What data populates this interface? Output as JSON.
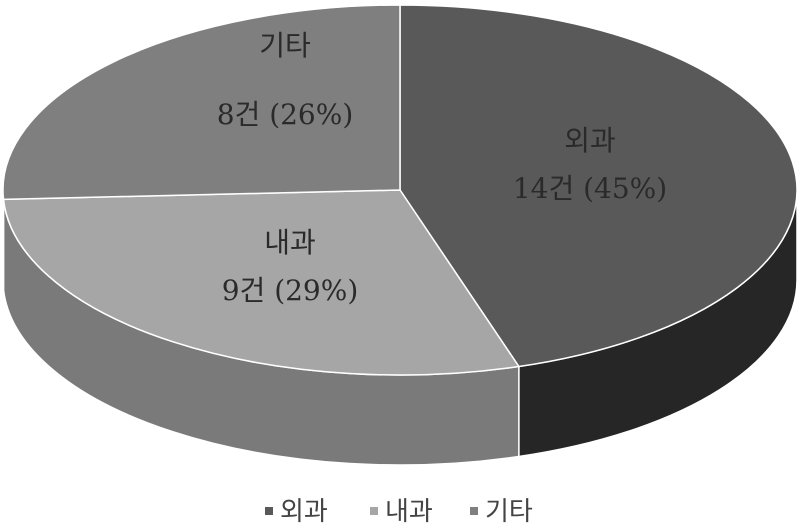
{
  "chart_data": {
    "type": "pie",
    "style": "3d",
    "title": "",
    "categories": [
      "외과",
      "내과",
      "기타"
    ],
    "values": [
      14,
      9,
      8
    ],
    "percents": [
      45,
      29,
      26
    ],
    "data_labels": [
      {
        "name": "외과",
        "value": "14건 (45%)"
      },
      {
        "name": "내과",
        "value": "9건 (29%)"
      },
      {
        "name": "기타",
        "value": "8건 (26%)"
      }
    ],
    "colors": [
      "#595959",
      "#a6a6a6",
      "#7f7f7f"
    ],
    "side_colors": [
      "#262626",
      "#7a7a7a",
      "#5e5e5e"
    ],
    "legend": {
      "position": "bottom",
      "items": [
        "외과",
        "내과",
        "기타"
      ]
    }
  }
}
